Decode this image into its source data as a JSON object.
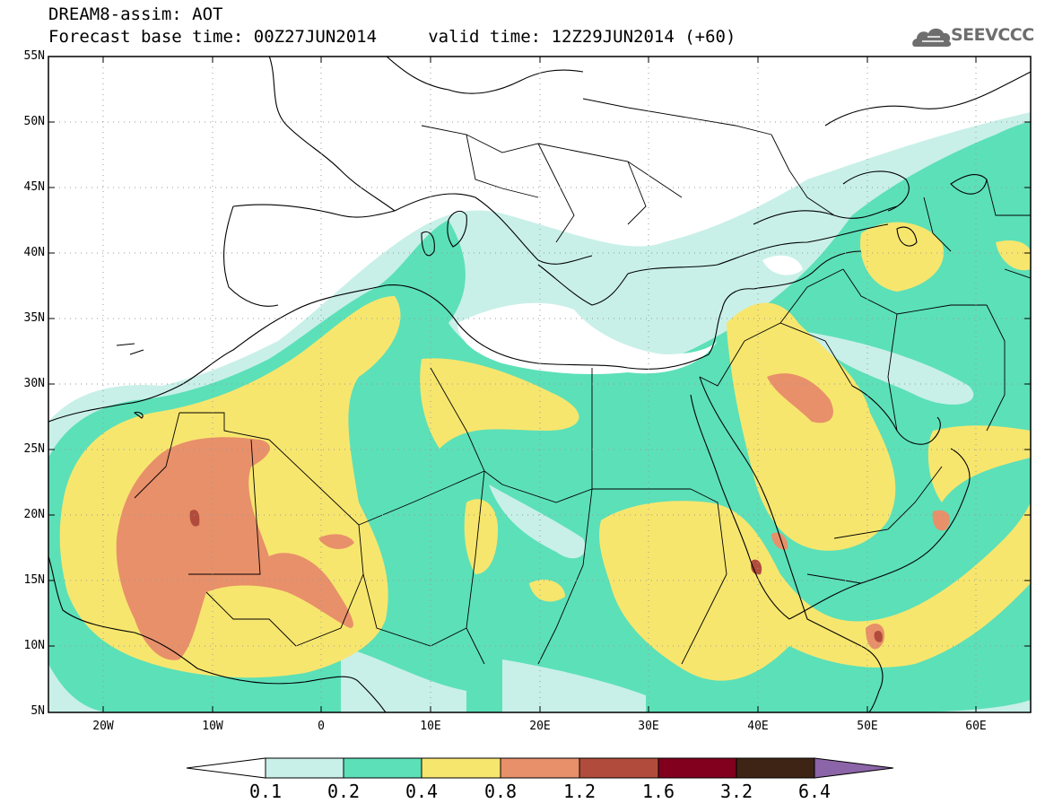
{
  "header": {
    "line1": "DREAM8-assim: AOT",
    "line2": "Forecast base time: 00Z27JUN2014     valid time: 12Z29JUN2014 (+60)"
  },
  "logo": {
    "text": "SEEVCCC",
    "icon": "cloud-logo-icon"
  },
  "map": {
    "variable": "AOT",
    "lon_range": [
      -25,
      65
    ],
    "lat_range": [
      5,
      55
    ],
    "lat_labels": [
      "55N",
      "50N",
      "45N",
      "40N",
      "35N",
      "30N",
      "25N",
      "20N",
      "15N",
      "10N",
      "5N"
    ],
    "lon_labels": [
      "20W",
      "10W",
      "0",
      "10E",
      "20E",
      "30E",
      "40E",
      "50E",
      "60E"
    ]
  },
  "colorbar": {
    "levels": [
      "0.1",
      "0.2",
      "0.4",
      "0.8",
      "1.2",
      "1.6",
      "3.2",
      "6.4"
    ],
    "colors": [
      "#ffffff",
      "#c8f0e8",
      "#5ce0b8",
      "#f7e66e",
      "#e8906a",
      "#b14c3c",
      "#82001e",
      "#3e2414",
      "#8c64a8"
    ]
  }
}
